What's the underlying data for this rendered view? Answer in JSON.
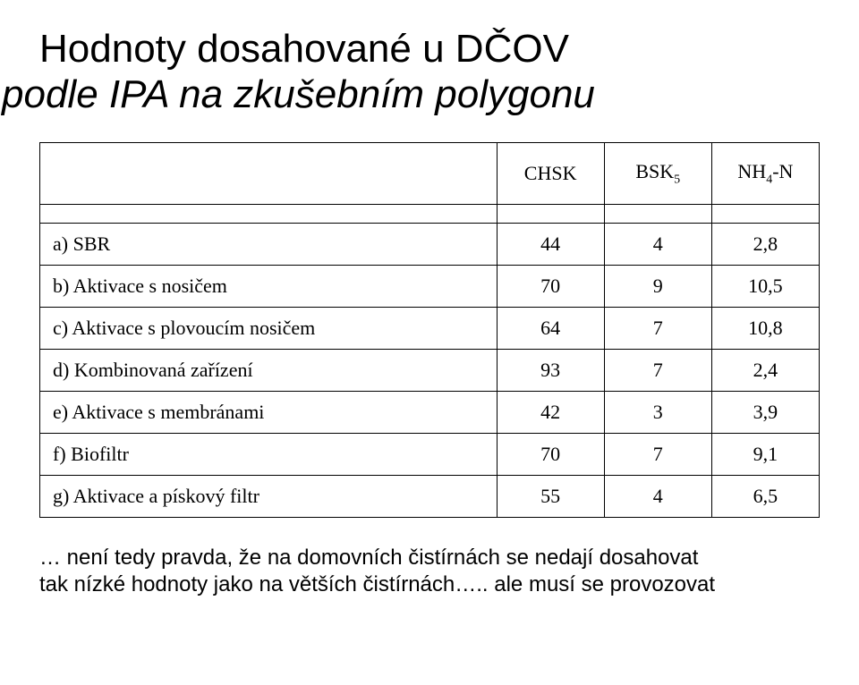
{
  "heading": {
    "line1": "Hodnoty dosahované u DČOV",
    "line2": "podle IPA na zkušebním polygonu"
  },
  "table": {
    "columns": [
      {
        "key": "desc",
        "label": ""
      },
      {
        "key": "chsk",
        "label": "CHSK"
      },
      {
        "key": "bsk5",
        "label_prefix": "BSK",
        "label_sub": "5"
      },
      {
        "key": "nh4n",
        "label_prefix": "NH",
        "label_sub": "4",
        "label_suffix": "-N"
      }
    ],
    "rows": [
      {
        "desc": "a) SBR",
        "chsk": "44",
        "bsk5": "4",
        "nh4n": "2,8"
      },
      {
        "desc": "b) Aktivace s nosičem",
        "chsk": "70",
        "bsk5": "9",
        "nh4n": "10,5"
      },
      {
        "desc": "c) Aktivace s plovoucím nosičem",
        "chsk": "64",
        "bsk5": "7",
        "nh4n": "10,8"
      },
      {
        "desc": "d) Kombinovaná zařízení",
        "chsk": "93",
        "bsk5": "7",
        "nh4n": "2,4"
      },
      {
        "desc": "e) Aktivace s membránami",
        "chsk": "42",
        "bsk5": "3",
        "nh4n": "3,9"
      },
      {
        "desc": "f) Biofiltr",
        "chsk": "70",
        "bsk5": "7",
        "nh4n": "9,1"
      },
      {
        "desc": "g) Aktivace a pískový filtr",
        "chsk": "55",
        "bsk5": "4",
        "nh4n": "6,5"
      }
    ]
  },
  "footnote": {
    "line1": "… není tedy pravda, že na domovních čistírnách se nedají dosahovat",
    "line2": "tak nízké hodnoty jako na větších čistírnách….. ale musí se provozovat"
  }
}
